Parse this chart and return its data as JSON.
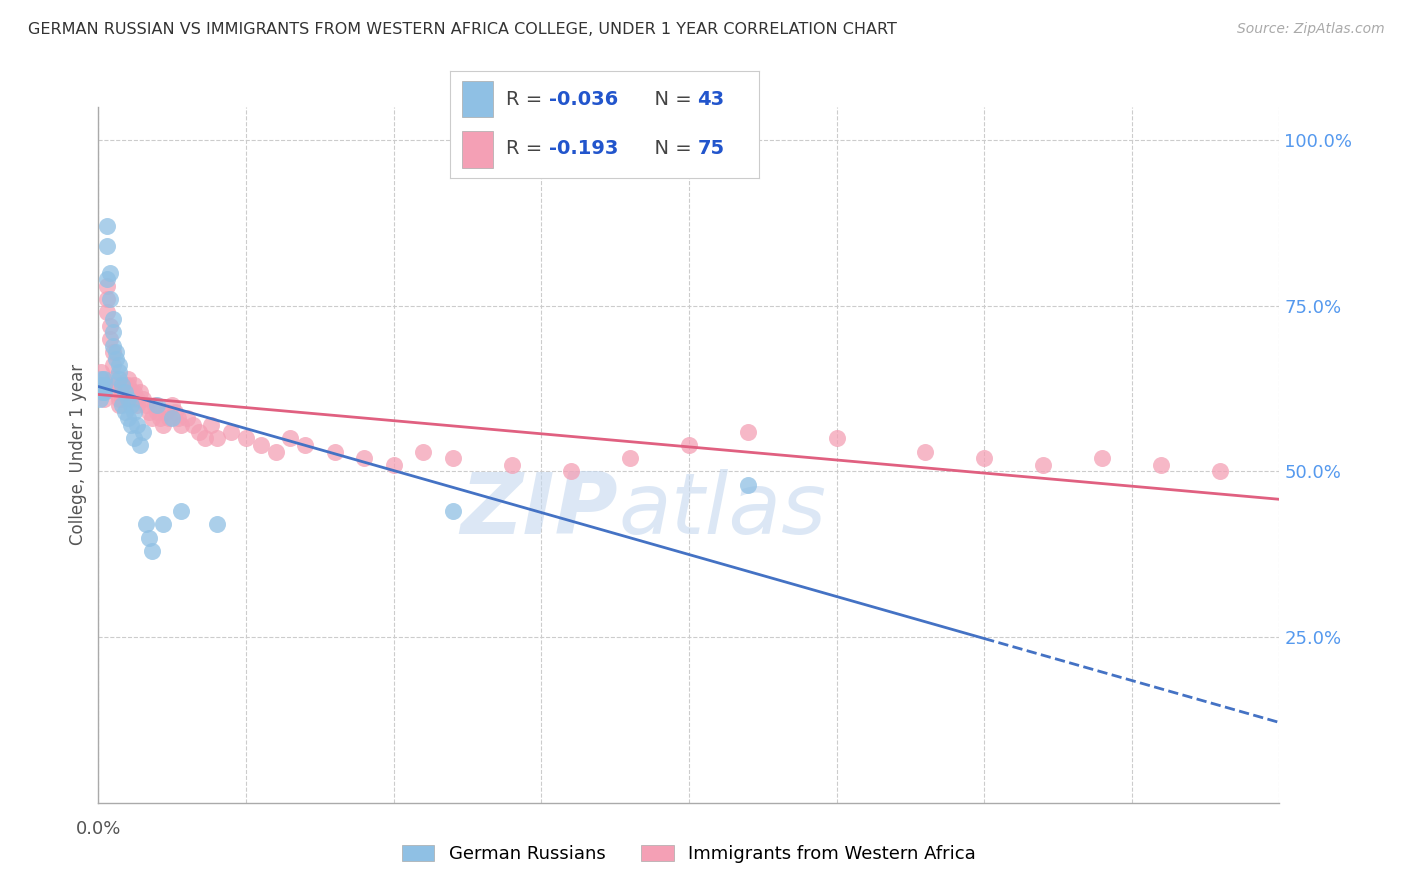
{
  "title": "GERMAN RUSSIAN VS IMMIGRANTS FROM WESTERN AFRICA COLLEGE, UNDER 1 YEAR CORRELATION CHART",
  "source": "Source: ZipAtlas.com",
  "ylabel": "College, Under 1 year",
  "right_yticks": [
    "100.0%",
    "75.0%",
    "50.0%",
    "25.0%"
  ],
  "right_ytick_vals": [
    1.0,
    0.75,
    0.5,
    0.25
  ],
  "legend_label1": "German Russians",
  "legend_label2": "Immigrants from Western Africa",
  "color_blue": "#8fc0e4",
  "color_pink": "#f4a0b5",
  "line_color_blue": "#4472c4",
  "line_color_pink": "#e06080",
  "watermark_zip": "ZIP",
  "watermark_atlas": "atlas",
  "xlim": [
    0.0,
    0.4
  ],
  "ylim": [
    0.0,
    1.05
  ],
  "background_color": "#ffffff",
  "grid_color": "#cccccc",
  "blue_x": [
    0.0005,
    0.001,
    0.001,
    0.0015,
    0.002,
    0.002,
    0.002,
    0.003,
    0.003,
    0.003,
    0.004,
    0.004,
    0.005,
    0.005,
    0.005,
    0.006,
    0.006,
    0.007,
    0.007,
    0.007,
    0.008,
    0.008,
    0.009,
    0.009,
    0.01,
    0.01,
    0.011,
    0.011,
    0.012,
    0.012,
    0.013,
    0.014,
    0.015,
    0.016,
    0.017,
    0.018,
    0.02,
    0.022,
    0.025,
    0.028,
    0.04,
    0.12,
    0.22
  ],
  "blue_y": [
    0.61,
    0.64,
    0.63,
    0.62,
    0.64,
    0.63,
    0.62,
    0.87,
    0.84,
    0.79,
    0.8,
    0.76,
    0.73,
    0.71,
    0.69,
    0.68,
    0.67,
    0.66,
    0.65,
    0.64,
    0.63,
    0.6,
    0.62,
    0.59,
    0.61,
    0.58,
    0.6,
    0.57,
    0.59,
    0.55,
    0.57,
    0.54,
    0.56,
    0.42,
    0.4,
    0.38,
    0.6,
    0.42,
    0.58,
    0.44,
    0.42,
    0.44,
    0.48
  ],
  "pink_x": [
    0.0005,
    0.001,
    0.001,
    0.0015,
    0.002,
    0.002,
    0.002,
    0.003,
    0.003,
    0.003,
    0.004,
    0.004,
    0.005,
    0.005,
    0.005,
    0.006,
    0.006,
    0.007,
    0.007,
    0.008,
    0.008,
    0.009,
    0.009,
    0.01,
    0.01,
    0.011,
    0.011,
    0.012,
    0.012,
    0.013,
    0.013,
    0.014,
    0.015,
    0.016,
    0.017,
    0.018,
    0.019,
    0.02,
    0.021,
    0.022,
    0.023,
    0.024,
    0.025,
    0.026,
    0.027,
    0.028,
    0.03,
    0.032,
    0.034,
    0.036,
    0.038,
    0.04,
    0.045,
    0.05,
    0.055,
    0.06,
    0.065,
    0.07,
    0.08,
    0.09,
    0.1,
    0.11,
    0.12,
    0.14,
    0.16,
    0.18,
    0.2,
    0.22,
    0.25,
    0.28,
    0.3,
    0.32,
    0.34,
    0.36,
    0.38
  ],
  "pink_y": [
    0.62,
    0.65,
    0.63,
    0.64,
    0.63,
    0.62,
    0.61,
    0.78,
    0.76,
    0.74,
    0.72,
    0.7,
    0.68,
    0.66,
    0.64,
    0.63,
    0.62,
    0.61,
    0.6,
    0.62,
    0.61,
    0.63,
    0.62,
    0.64,
    0.63,
    0.62,
    0.61,
    0.63,
    0.62,
    0.61,
    0.6,
    0.62,
    0.61,
    0.6,
    0.59,
    0.58,
    0.6,
    0.59,
    0.58,
    0.57,
    0.59,
    0.58,
    0.6,
    0.59,
    0.58,
    0.57,
    0.58,
    0.57,
    0.56,
    0.55,
    0.57,
    0.55,
    0.56,
    0.55,
    0.54,
    0.53,
    0.55,
    0.54,
    0.53,
    0.52,
    0.51,
    0.53,
    0.52,
    0.51,
    0.5,
    0.52,
    0.54,
    0.56,
    0.55,
    0.53,
    0.52,
    0.51,
    0.52,
    0.51,
    0.5
  ]
}
